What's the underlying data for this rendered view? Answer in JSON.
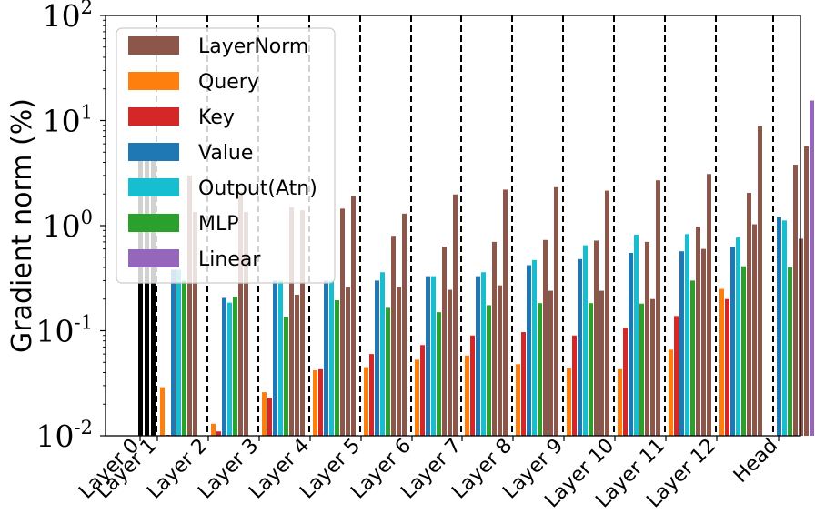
{
  "chart_data": {
    "type": "bar",
    "ylabel": "Gradient norm (%)",
    "xlabel": "",
    "yscale": "log",
    "ylim": [
      0.01,
      100
    ],
    "yticks": [
      {
        "base": "10",
        "exp": "-2"
      },
      {
        "base": "10",
        "exp": "-1"
      },
      {
        "base": "10",
        "exp": "0"
      },
      {
        "base": "10",
        "exp": "1"
      },
      {
        "base": "10",
        "exp": "2"
      }
    ],
    "categories": [
      "Layer 0",
      "Layer 1",
      "Layer 2",
      "Layer 3",
      "Layer 4",
      "Layer 5",
      "Layer 6",
      "Layer 7",
      "Layer 8",
      "Layer 9",
      "Layer 10",
      "Layer 11",
      "Layer 12",
      "Head"
    ],
    "legend_position": "upper-left",
    "colors": {
      "embedding": "#000000",
      "separator": "#000000"
    },
    "embedding_series": {
      "values": [
        5.0,
        5.0,
        5.0
      ]
    },
    "series": [
      {
        "name": "LayerNorm",
        "color": "#8c564b",
        "values": [
          null,
          3.0,
          2.1,
          1.5,
          1.45,
          0.8,
          0.63,
          0.7,
          0.73,
          0.72,
          0.7,
          0.98,
          2.05,
          3.8
        ]
      },
      {
        "name": "Query",
        "color": "#ff7f0e",
        "values": [
          null,
          0.029,
          0.013,
          0.026,
          0.042,
          0.045,
          0.053,
          0.058,
          0.048,
          0.044,
          0.043,
          0.066,
          0.25,
          null
        ]
      },
      {
        "name": "Key",
        "color": "#d62728",
        "values": [
          null,
          0.0102,
          0.011,
          0.023,
          0.043,
          0.06,
          0.073,
          0.09,
          0.097,
          0.09,
          0.107,
          0.138,
          0.2,
          null
        ]
      },
      {
        "name": "Value",
        "color": "#1f77b4",
        "values": [
          null,
          0.38,
          0.205,
          0.3,
          0.3,
          0.3,
          0.33,
          0.33,
          0.42,
          0.48,
          0.55,
          0.57,
          0.63,
          1.2
        ]
      },
      {
        "name": "Output(Atn)",
        "color": "#17becf",
        "values": [
          null,
          0.38,
          0.185,
          0.3,
          0.3,
          0.36,
          0.33,
          0.36,
          0.47,
          0.65,
          0.82,
          0.83,
          0.77,
          1.12
        ]
      },
      {
        "name": "MLP",
        "color": "#2ca02c",
        "values": [
          null,
          0.3,
          0.21,
          0.135,
          0.195,
          0.165,
          0.15,
          0.175,
          0.183,
          0.183,
          0.181,
          0.3,
          0.41,
          0.4
        ]
      },
      {
        "name": "LayerNorm",
        "color": "#8c564b",
        "values": [
          null,
          1.35,
          1.35,
          0.22,
          0.26,
          0.26,
          0.245,
          0.27,
          0.24,
          0.24,
          0.2,
          0.6,
          1.03,
          0.75
        ],
        "second": true
      },
      {
        "name": "LayerNorm",
        "color": "#8c564b",
        "values": [
          null,
          null,
          null,
          1.4,
          1.9,
          1.3,
          1.98,
          2.2,
          2.32,
          2.15,
          2.7,
          3.1,
          8.8,
          5.7
        ],
        "third": true
      },
      {
        "name": "Linear",
        "color": "#9467bd",
        "values": [
          null,
          null,
          null,
          null,
          null,
          null,
          null,
          null,
          null,
          null,
          null,
          null,
          null,
          15.5
        ]
      }
    ],
    "legend": [
      {
        "name": "LayerNorm",
        "color": "#8c564b"
      },
      {
        "name": "Query",
        "color": "#ff7f0e"
      },
      {
        "name": "Key",
        "color": "#d62728"
      },
      {
        "name": "Value",
        "color": "#1f77b4"
      },
      {
        "name": "Output(Atn)",
        "color": "#17becf"
      },
      {
        "name": "MLP",
        "color": "#2ca02c"
      },
      {
        "name": "Linear",
        "color": "#9467bd"
      }
    ]
  }
}
